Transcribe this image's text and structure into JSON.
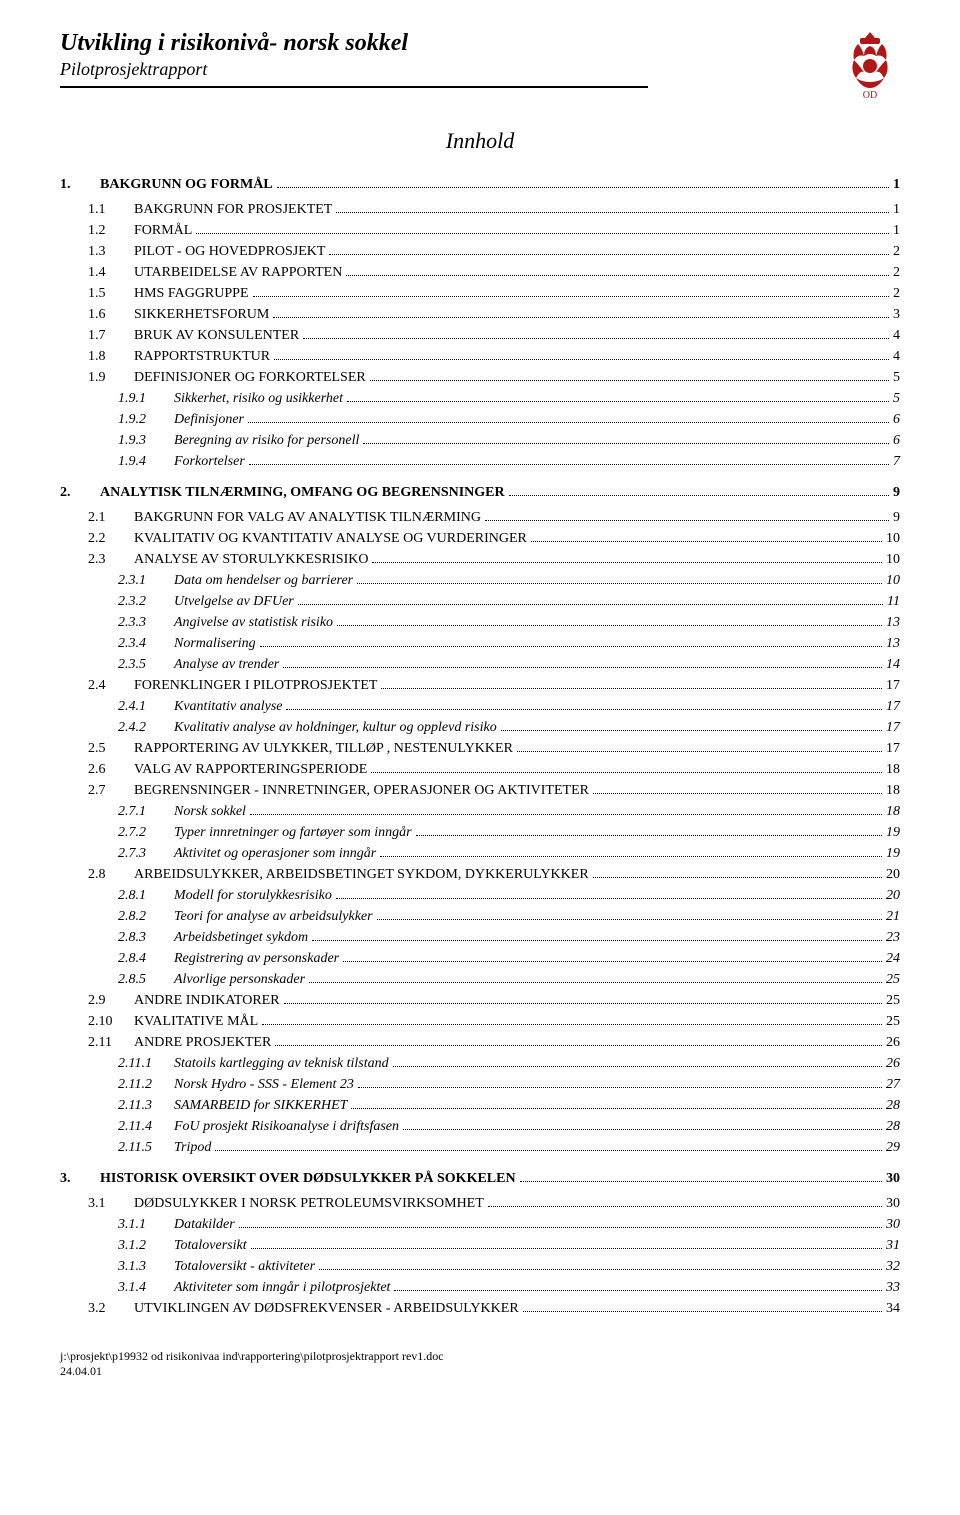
{
  "header": {
    "title": "Utvikling i risikonivå- norsk sokkel",
    "subtitle": "Pilotprosjektrapport"
  },
  "innhold": "Innhold",
  "toc": [
    {
      "lvl": 1,
      "num": "1.",
      "label": "BAKGRUNN OG FORMÅL",
      "page": "1"
    },
    {
      "lvl": 2,
      "num": "1.1",
      "label": "BAKGRUNN FOR PROSJEKTET",
      "page": "1",
      "sc": true
    },
    {
      "lvl": 2,
      "num": "1.2",
      "label": "FORMÅL",
      "page": "1",
      "sc": true
    },
    {
      "lvl": 2,
      "num": "1.3",
      "label": "PILOT - OG HOVEDPROSJEKT",
      "page": "2",
      "sc": true
    },
    {
      "lvl": 2,
      "num": "1.4",
      "label": "UTARBEIDELSE AV RAPPORTEN",
      "page": "2",
      "sc": true
    },
    {
      "lvl": 2,
      "num": "1.5",
      "label": "HMS FAGGRUPPE",
      "page": "2",
      "sc": true
    },
    {
      "lvl": 2,
      "num": "1.6",
      "label": "SIKKERHETSFORUM",
      "page": "3",
      "sc": true
    },
    {
      "lvl": 2,
      "num": "1.7",
      "label": "BRUK AV KONSULENTER",
      "page": "4",
      "sc": true
    },
    {
      "lvl": 2,
      "num": "1.8",
      "label": "RAPPORTSTRUKTUR",
      "page": "4",
      "sc": true
    },
    {
      "lvl": 2,
      "num": "1.9",
      "label": "DEFINISJONER OG FORKORTELSER",
      "page": "5",
      "sc": true
    },
    {
      "lvl": 3,
      "num": "1.9.1",
      "label": "Sikkerhet, risiko og usikkerhet",
      "page": "5"
    },
    {
      "lvl": 3,
      "num": "1.9.2",
      "label": "Definisjoner",
      "page": "6"
    },
    {
      "lvl": 3,
      "num": "1.9.3",
      "label": "Beregning av risiko for personell",
      "page": "6"
    },
    {
      "lvl": 3,
      "num": "1.9.4",
      "label": "Forkortelser",
      "page": "7"
    },
    {
      "lvl": 1,
      "num": "2.",
      "label": "ANALYTISK TILNÆRMING, OMFANG OG BEGRENSNINGER",
      "page": "9"
    },
    {
      "lvl": 2,
      "num": "2.1",
      "label": "BAKGRUNN FOR VALG AV ANALYTISK TILNÆRMING",
      "page": "9",
      "sc": true
    },
    {
      "lvl": 2,
      "num": "2.2",
      "label": "KVALITATIV OG KVANTITATIV ANALYSE OG VURDERINGER",
      "page": "10",
      "sc": true
    },
    {
      "lvl": 2,
      "num": "2.3",
      "label": "ANALYSE AV STORULYKKESRISIKO",
      "page": "10",
      "sc": true
    },
    {
      "lvl": 3,
      "num": "2.3.1",
      "label": "Data om hendelser og barrierer",
      "page": "10"
    },
    {
      "lvl": 3,
      "num": "2.3.2",
      "label": "Utvelgelse av DFUer",
      "page": "11"
    },
    {
      "lvl": 3,
      "num": "2.3.3",
      "label": "Angivelse av statistisk risiko",
      "page": "13"
    },
    {
      "lvl": 3,
      "num": "2.3.4",
      "label": "Normalisering",
      "page": "13"
    },
    {
      "lvl": 3,
      "num": "2.3.5",
      "label": "Analyse av trender",
      "page": "14"
    },
    {
      "lvl": 2,
      "num": "2.4",
      "label": "FORENKLINGER I PILOTPROSJEKTET",
      "page": "17",
      "sc": true
    },
    {
      "lvl": 3,
      "num": "2.4.1",
      "label": "Kvantitativ analyse",
      "page": "17"
    },
    {
      "lvl": 3,
      "num": "2.4.2",
      "label": "Kvalitativ analyse av holdninger, kultur og opplevd risiko",
      "page": "17"
    },
    {
      "lvl": 2,
      "num": "2.5",
      "label": "RAPPORTERING AV ULYKKER, TILLØP , NESTENULYKKER",
      "page": "17",
      "sc": true
    },
    {
      "lvl": 2,
      "num": "2.6",
      "label": "VALG AV RAPPORTERINGSPERIODE",
      "page": "18",
      "sc": true
    },
    {
      "lvl": 2,
      "num": "2.7",
      "label": "BEGRENSNINGER - INNRETNINGER, OPERASJONER OG AKTIVITETER",
      "page": "18",
      "sc": true
    },
    {
      "lvl": 3,
      "num": "2.7.1",
      "label": "Norsk sokkel",
      "page": "18"
    },
    {
      "lvl": 3,
      "num": "2.7.2",
      "label": "Typer innretninger og fartøyer som inngår",
      "page": "19"
    },
    {
      "lvl": 3,
      "num": "2.7.3",
      "label": "Aktivitet og operasjoner som inngår",
      "page": "19"
    },
    {
      "lvl": 2,
      "num": "2.8",
      "label": "ARBEIDSULYKKER, ARBEIDSBETINGET SYKDOM, DYKKERULYKKER",
      "page": "20",
      "sc": true
    },
    {
      "lvl": 3,
      "num": "2.8.1",
      "label": "Modell for storulykkesrisiko",
      "page": "20"
    },
    {
      "lvl": 3,
      "num": "2.8.2",
      "label": "Teori for analyse av arbeidsulykker",
      "page": "21"
    },
    {
      "lvl": 3,
      "num": "2.8.3",
      "label": "Arbeidsbetinget sykdom",
      "page": "23"
    },
    {
      "lvl": 3,
      "num": "2.8.4",
      "label": "Registrering av personskader",
      "page": "24"
    },
    {
      "lvl": 3,
      "num": "2.8.5",
      "label": "Alvorlige personskader",
      "page": "25"
    },
    {
      "lvl": 2,
      "num": "2.9",
      "label": "ANDRE INDIKATORER",
      "page": "25",
      "sc": true
    },
    {
      "lvl": 2,
      "num": "2.10",
      "label": "KVALITATIVE MÅL",
      "page": "25",
      "sc": true
    },
    {
      "lvl": 2,
      "num": "2.11",
      "label": "ANDRE PROSJEKTER",
      "page": "26",
      "sc": true
    },
    {
      "lvl": 3,
      "num": "2.11.1",
      "label": "Statoils kartlegging av teknisk tilstand",
      "page": "26"
    },
    {
      "lvl": 3,
      "num": "2.11.2",
      "label": "Norsk Hydro - SSS - Element 23",
      "page": "27"
    },
    {
      "lvl": 3,
      "num": "2.11.3",
      "label": "SAMARBEID for SIKKERHET",
      "page": "28"
    },
    {
      "lvl": 3,
      "num": "2.11.4",
      "label": "FoU prosjekt Risikoanalyse i driftsfasen",
      "page": "28"
    },
    {
      "lvl": 3,
      "num": "2.11.5",
      "label": "Tripod",
      "page": "29"
    },
    {
      "lvl": 1,
      "num": "3.",
      "label": "HISTORISK OVERSIKT OVER DØDSULYKKER PÅ SOKKELEN",
      "page": "30"
    },
    {
      "lvl": 2,
      "num": "3.1",
      "label": "DØDSULYKKER I NORSK PETROLEUMSVIRKSOMHET",
      "page": "30",
      "sc": true
    },
    {
      "lvl": 3,
      "num": "3.1.1",
      "label": "Datakilder",
      "page": "30"
    },
    {
      "lvl": 3,
      "num": "3.1.2",
      "label": "Totaloversikt",
      "page": "31"
    },
    {
      "lvl": 3,
      "num": "3.1.3",
      "label": "Totaloversikt - aktiviteter",
      "page": "32"
    },
    {
      "lvl": 3,
      "num": "3.1.4",
      "label": "Aktiviteter som inngår i pilotprosjektet",
      "page": "33"
    },
    {
      "lvl": 2,
      "num": "3.2",
      "label": "UTVIKLINGEN AV DØDSFREKVENSER - ARBEIDSULYKKER",
      "page": "34",
      "sc": true
    }
  ],
  "footer": {
    "path": "j:\\prosjekt\\p19932 od risikonivaa ind\\rapportering\\pilotprosjektrapport rev1.doc",
    "date": "24.04.01"
  },
  "logo_color": "#b01818"
}
